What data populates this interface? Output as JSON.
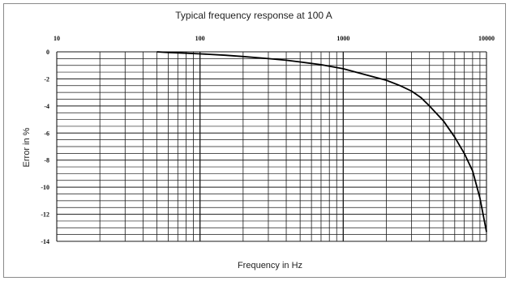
{
  "chart_data": {
    "type": "line",
    "title": "Typical frequency response at 100 A",
    "xlabel": "Frequency in Hz",
    "ylabel": "Error in %",
    "x_scale": "log",
    "xlim": [
      10,
      10000
    ],
    "ylim": [
      -14,
      0
    ],
    "x_ticks": [
      "10",
      "100",
      "1000",
      "10000"
    ],
    "y_ticks": [
      "0",
      "-2",
      "-4",
      "-6",
      "-8",
      "-10",
      "-12",
      "-14"
    ],
    "grid": true,
    "legend": "none",
    "line_color": "#000000",
    "series": [
      {
        "x": [
          50,
          60,
          80,
          100,
          150,
          200,
          300,
          400,
          500,
          700,
          1000,
          1500,
          2000,
          2500,
          3000,
          3500,
          4000,
          5000,
          6000,
          7000,
          8000,
          9000,
          10000
        ],
        "y": [
          0,
          -0.05,
          -0.1,
          -0.15,
          -0.25,
          -0.35,
          -0.5,
          -0.62,
          -0.75,
          -0.95,
          -1.25,
          -1.75,
          -2.1,
          -2.5,
          -2.9,
          -3.4,
          -4.0,
          -5.1,
          -6.3,
          -7.5,
          -8.8,
          -10.8,
          -13.3
        ]
      }
    ]
  }
}
